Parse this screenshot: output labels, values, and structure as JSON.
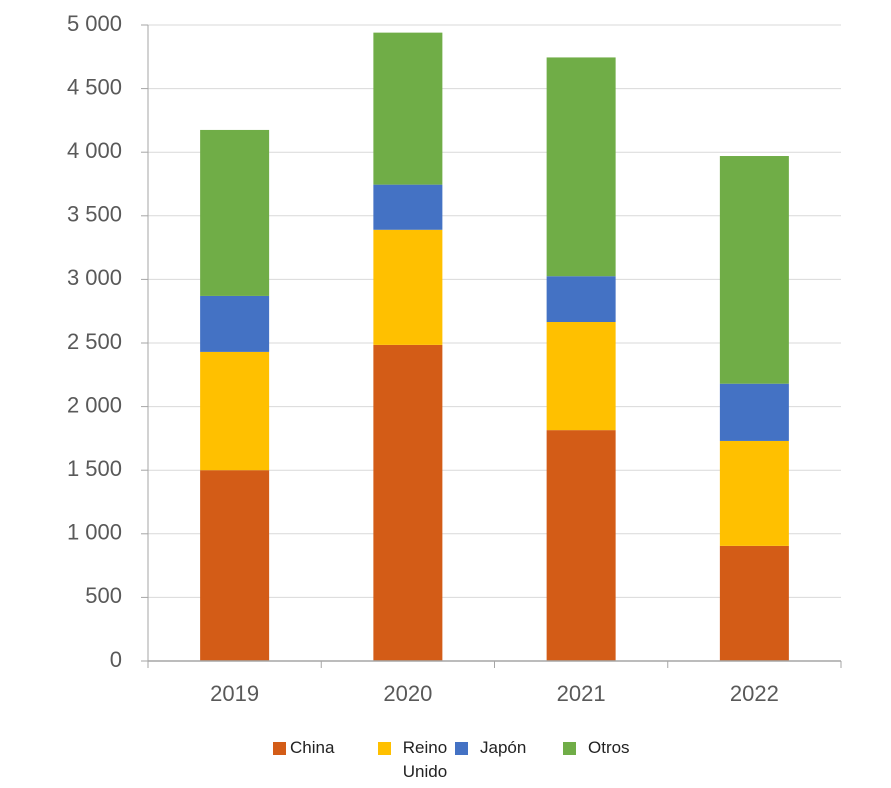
{
  "chart_data": {
    "type": "stacked_bar",
    "categories": [
      "2019",
      "2020",
      "2021",
      "2022"
    ],
    "series": [
      {
        "name": "China",
        "color": "#d35c17",
        "values": [
          1500,
          2485,
          1815,
          905
        ]
      },
      {
        "name": "Reino Unido",
        "color": "#ffc000",
        "values": [
          930,
          905,
          850,
          825
        ]
      },
      {
        "name": "Japón",
        "color": "#4472c4",
        "values": [
          440,
          355,
          360,
          450
        ]
      },
      {
        "name": "Otros",
        "color": "#70ad47",
        "values": [
          1305,
          1195,
          1720,
          1790
        ]
      }
    ],
    "ylim": [
      0,
      5000
    ],
    "yticks": [
      0,
      500,
      {
        "value": 1000,
        "label": "1 000"
      },
      {
        "value": 1500,
        "label": "1 500"
      },
      {
        "value": 2000,
        "label": "2 000"
      },
      {
        "value": 2500,
        "label": "2 500"
      },
      {
        "value": 3000,
        "label": "3 000"
      },
      {
        "value": 3500,
        "label": "3 500"
      },
      {
        "value": 4000,
        "label": "4 000"
      },
      {
        "value": 4500,
        "label": "4 500"
      },
      {
        "value": 5000,
        "label": "5 000"
      }
    ],
    "grid": true,
    "legend": "bottom"
  }
}
